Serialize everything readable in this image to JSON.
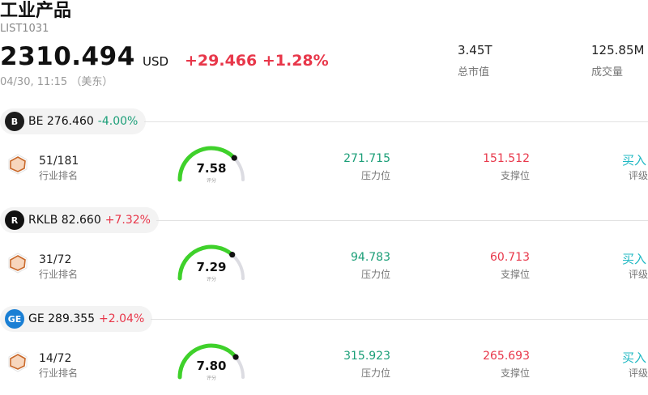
{
  "header": {
    "title": "工业产品",
    "code": "LIST1031",
    "price": "2310.494",
    "currency": "USD",
    "change": "+29.466 +1.28%",
    "timestamp": "04/30, 11:15 （美东）",
    "stats": [
      {
        "value": "3.45T",
        "label": "总市值"
      },
      {
        "value": "125.85M",
        "label": "成交量"
      }
    ]
  },
  "labels": {
    "rank": "行业排名",
    "resistance": "压力位",
    "support": "支撑位",
    "rating": "评级",
    "score": "评分"
  },
  "stocks": [
    {
      "ticker_text": "BE 276.460",
      "change": "-4.00%",
      "direction": "down",
      "rank": "51/181",
      "score": "7.58",
      "score_fraction": 0.758,
      "resistance": "271.715",
      "support": "151.512",
      "rating": "买入",
      "logo_icon": "bloom-energy-logo-icon"
    },
    {
      "ticker_text": "RKLB 82.660",
      "change": "+7.32%",
      "direction": "up",
      "rank": "31/72",
      "score": "7.29",
      "score_fraction": 0.729,
      "resistance": "94.783",
      "support": "60.713",
      "rating": "买入",
      "logo_icon": "rocket-lab-logo-icon"
    },
    {
      "ticker_text": "GE 289.355",
      "change": "+2.04%",
      "direction": "up",
      "rank": "14/72",
      "score": "7.80",
      "score_fraction": 0.78,
      "resistance": "315.923",
      "support": "265.693",
      "rating": "买入",
      "logo_icon": "ge-logo-icon"
    }
  ],
  "colors": {
    "up": "#e8374a",
    "down": "#1a9e77",
    "gauge": "#3fd12b",
    "gauge_track": "#dcdce2",
    "rating": "#1fb8c3",
    "rank_icon": "#c8682a"
  }
}
